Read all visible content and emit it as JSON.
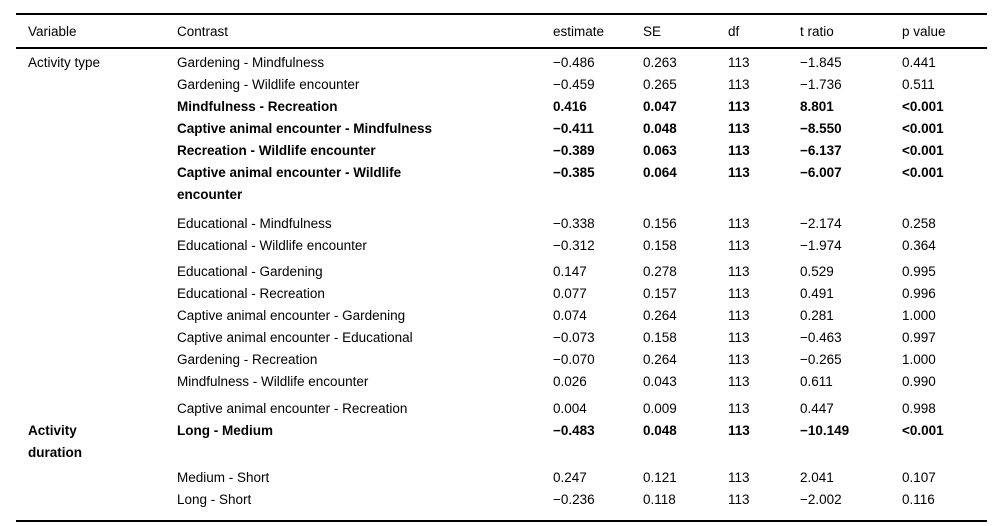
{
  "page": {
    "background_color": "#ffffff",
    "text_color": "#000000",
    "rule_color": "#000000"
  },
  "table": {
    "columns": [
      {
        "key": "variable",
        "label": "Variable"
      },
      {
        "key": "contrast",
        "label": "Contrast"
      },
      {
        "key": "estimate",
        "label": "estimate"
      },
      {
        "key": "se",
        "label": "SE"
      },
      {
        "key": "df",
        "label": "df"
      },
      {
        "key": "t_ratio",
        "label": "t ratio"
      },
      {
        "key": "p_value",
        "label": "p value"
      }
    ],
    "rows": [
      {
        "variable": "Activity type",
        "contrast": "Gardening - Mindfulness",
        "estimate": "−0.486",
        "se": "0.263",
        "df": "113",
        "t_ratio": "−1.845",
        "p_value": "0.441",
        "bold": false
      },
      {
        "variable": "",
        "contrast": "Gardening - Wildlife encounter",
        "estimate": "−0.459",
        "se": "0.265",
        "df": "113",
        "t_ratio": "−1.736",
        "p_value": "0.511",
        "bold": false
      },
      {
        "variable": "",
        "contrast": "Mindfulness - Recreation",
        "estimate": "0.416",
        "se": "0.047",
        "df": "113",
        "t_ratio": "8.801",
        "p_value": "<0.001",
        "bold": true
      },
      {
        "variable": "",
        "contrast": "Captive animal encounter - Mindfulness",
        "estimate": "−0.411",
        "se": "0.048",
        "df": "113",
        "t_ratio": "−8.550",
        "p_value": "<0.001",
        "bold": true
      },
      {
        "variable": "",
        "contrast": "Recreation - Wildlife encounter",
        "estimate": "−0.389",
        "se": "0.063",
        "df": "113",
        "t_ratio": "−6.137",
        "p_value": "<0.001",
        "bold": true
      },
      {
        "variable": "",
        "contrast": "Captive animal encounter - Wildlife\nencounter",
        "estimate": "−0.385",
        "se": "0.064",
        "df": "113",
        "t_ratio": "−6.007",
        "p_value": "<0.001",
        "bold": true
      },
      {
        "variable": "",
        "contrast": "Educational - Mindfulness",
        "estimate": "−0.338",
        "se": "0.156",
        "df": "113",
        "t_ratio": "−2.174",
        "p_value": "0.258",
        "bold": false
      },
      {
        "variable": "",
        "contrast": "Educational - Wildlife encounter",
        "estimate": "−0.312",
        "se": "0.158",
        "df": "113",
        "t_ratio": "−1.974",
        "p_value": "0.364",
        "bold": false
      },
      {
        "variable": "",
        "contrast": "Educational - Gardening",
        "estimate": "0.147",
        "se": "0.278",
        "df": "113",
        "t_ratio": "0.529",
        "p_value": "0.995",
        "bold": false
      },
      {
        "variable": "",
        "contrast": "Educational - Recreation",
        "estimate": "0.077",
        "se": "0.157",
        "df": "113",
        "t_ratio": "0.491",
        "p_value": "0.996",
        "bold": false
      },
      {
        "variable": "",
        "contrast": "Captive animal encounter - Gardening",
        "estimate": "0.074",
        "se": "0.264",
        "df": "113",
        "t_ratio": "0.281",
        "p_value": "1.000",
        "bold": false
      },
      {
        "variable": "",
        "contrast": "Captive animal encounter - Educational",
        "estimate": "−0.073",
        "se": "0.158",
        "df": "113",
        "t_ratio": "−0.463",
        "p_value": "0.997",
        "bold": false
      },
      {
        "variable": "",
        "contrast": "Gardening - Recreation",
        "estimate": "−0.070",
        "se": "0.264",
        "df": "113",
        "t_ratio": "−0.265",
        "p_value": "1.000",
        "bold": false
      },
      {
        "variable": "",
        "contrast": "Mindfulness - Wildlife encounter",
        "estimate": "0.026",
        "se": "0.043",
        "df": "113",
        "t_ratio": "0.611",
        "p_value": "0.990",
        "bold": false
      },
      {
        "variable": "",
        "contrast": "Captive animal encounter - Recreation",
        "estimate": "0.004",
        "se": "0.009",
        "df": "113",
        "t_ratio": "0.447",
        "p_value": "0.998",
        "bold": false
      },
      {
        "variable": "Activity\nduration",
        "contrast": "Long - Medium",
        "estimate": "−0.483",
        "se": "0.048",
        "df": "113",
        "t_ratio": "−10.149",
        "p_value": "<0.001",
        "bold": true
      },
      {
        "variable": "",
        "contrast": "Medium - Short",
        "estimate": "0.247",
        "se": "0.121",
        "df": "113",
        "t_ratio": "2.041",
        "p_value": "0.107",
        "bold": false
      },
      {
        "variable": "",
        "contrast": "Long - Short",
        "estimate": "−0.236",
        "se": "0.118",
        "df": "113",
        "t_ratio": "−2.002",
        "p_value": "0.116",
        "bold": false
      }
    ]
  }
}
